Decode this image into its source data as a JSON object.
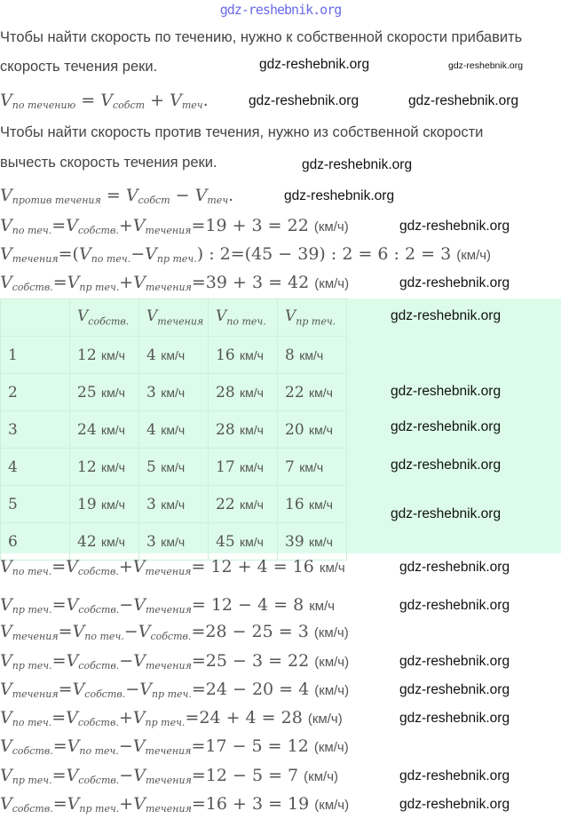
{
  "site_header": "gdz-reshebnik.org",
  "watermark": "gdz-reshebnik.org",
  "paragraphs": [
    "Чтобы найти скорость по течению, нужно к собственной скорости прибавить",
    "скорость течения реки.",
    "Чтобы найти скорость против течения, нужно из собственной скорости",
    "вычесть скорость течения реки."
  ],
  "formulas_top": [
    [
      {
        "v": "по течению"
      },
      " = ",
      {
        "v": "собст"
      },
      " + ",
      {
        "v": "теч"
      },
      "."
    ],
    [
      {
        "v": "против течения"
      },
      " = ",
      {
        "v": "собст"
      },
      " − ",
      {
        "v": "теч"
      },
      "."
    ],
    [
      {
        "v": "по теч."
      },
      "=",
      {
        "v": "собств."
      },
      "+",
      {
        "v": "течения"
      },
      "=19 + 3 = 22 ",
      {
        "u": "(км/ч)"
      }
    ],
    [
      {
        "v": "течения"
      },
      "=(",
      {
        "v": "по теч."
      },
      "−",
      {
        "v": "пр теч."
      },
      ") : 2=(45 − 39) : 2 = 6 : 2 = 3 ",
      {
        "u": "(км/ч)"
      }
    ],
    [
      {
        "v": "собств."
      },
      "=",
      {
        "v": "пр теч."
      },
      "+",
      {
        "v": "течения"
      },
      "=39 + 3 = 42 ",
      {
        "u": "(км/ч)"
      }
    ]
  ],
  "table": {
    "headers": [
      "",
      "собств.",
      "течения",
      "по теч.",
      "пр теч."
    ],
    "unit": "км/ч",
    "rows": [
      [
        "1",
        "12",
        "4",
        "16",
        "8"
      ],
      [
        "2",
        "25",
        "3",
        "28",
        "22"
      ],
      [
        "3",
        "24",
        "4",
        "28",
        "20"
      ],
      [
        "4",
        "12",
        "5",
        "17",
        "7"
      ],
      [
        "5",
        "19",
        "3",
        "22",
        "16"
      ],
      [
        "6",
        "42",
        "3",
        "45",
        "39"
      ]
    ]
  },
  "formulas_bottom": [
    [
      {
        "v": "по теч."
      },
      "=",
      {
        "v": "собств."
      },
      "+",
      {
        "v": "течения"
      },
      "= 12 + 4 = 16 ",
      {
        "u": "км/ч"
      }
    ],
    [
      {
        "v": "пр теч."
      },
      "=",
      {
        "v": "собств."
      },
      "−",
      {
        "v": "течения"
      },
      "= 12 − 4 = 8 ",
      {
        "u": "км/ч"
      }
    ],
    [
      {
        "v": "течения"
      },
      "=",
      {
        "v": "по теч."
      },
      "−",
      {
        "v": "собств."
      },
      "=28 − 25 = 3 ",
      {
        "u": "(км/ч)"
      }
    ],
    [
      {
        "v": "пр теч."
      },
      "=",
      {
        "v": "собств."
      },
      "−",
      {
        "v": "течения"
      },
      "=25 − 3 = 22 ",
      {
        "u": "(км/ч)"
      }
    ],
    [
      {
        "v": "течения"
      },
      "=",
      {
        "v": "собств."
      },
      "−",
      {
        "v": "пр теч."
      },
      "=24 − 20 = 4 ",
      {
        "u": "(км/ч)"
      }
    ],
    [
      {
        "v": "по теч."
      },
      "=",
      {
        "v": "собств."
      },
      "+",
      {
        "v": "пр теч."
      },
      "=24 + 4 = 28 ",
      {
        "u": "(км/ч)"
      }
    ],
    [
      {
        "v": "собств."
      },
      "=",
      {
        "v": "по теч."
      },
      "−",
      {
        "v": "течения"
      },
      "=17 − 5 = 12 ",
      {
        "u": "(км/ч)"
      }
    ],
    [
      {
        "v": "пр теч."
      },
      "=",
      {
        "v": "собств."
      },
      "−",
      {
        "v": "течения"
      },
      "=12 − 5 = 7 ",
      {
        "u": "(км/ч)"
      }
    ],
    [
      {
        "v": "собств."
      },
      "=",
      {
        "v": "пр теч."
      },
      "+",
      {
        "v": "течения"
      },
      "=16 + 3 = 19 ",
      {
        "u": "(км/ч)"
      }
    ]
  ],
  "colors": {
    "table_bg": "#dcfce9",
    "site_header": "#6a6ae8"
  }
}
